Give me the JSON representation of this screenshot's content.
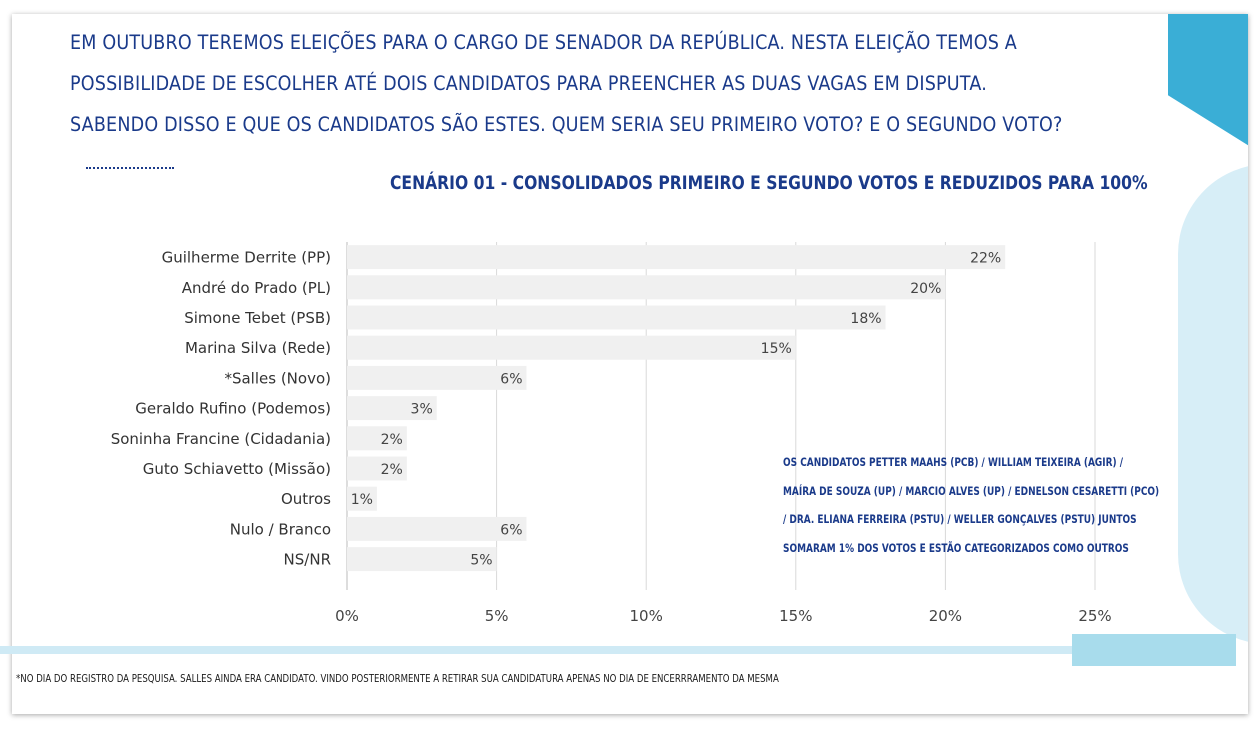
{
  "question": {
    "line1": "EM OUTUBRO TEREMOS ELEIÇÕES PARA O CARGO DE SENADOR DA REPÚBLICA. NESTA ELEIÇÃO TEMOS A",
    "line2": "POSSIBILIDADE DE ESCOLHER ATÉ DOIS CANDIDATOS PARA PREENCHER AS DUAS VAGAS EM DISPUTA.",
    "line3": "SABENDO DISSO E QUE OS CANDIDATOS SÃO ESTES. QUEM SERIA SEU PRIMEIRO VOTO? E O SEGUNDO VOTO?"
  },
  "note": {
    "line1": "OS CANDIDATOS PETTER MAAHS (PCB) / WILLIAM TEIXEIRA (AGIR) /",
    "line2": "MAÍRA DE SOUZA (UP) / MARCIO ALVES (UP) / EDNELSON CESARETTI (PCO)",
    "line3": "/ DRA. ELIANA FERREIRA (PSTU) / WELLER GONÇALVES (PSTU) JUNTOS",
    "line4": "SOMARAM 1% DOS VOTOS E ESTÃO CATEGORIZADOS COMO OUTROS"
  },
  "footnote": "*NO DIA DO REGISTRO DA PESQUISA. SALLES AINDA ERA CANDIDATO. VINDO POSTERIORMENTE A RETIRAR SUA CANDIDATURA APENAS NO DIA DE ENCERRRAMENTO DA MESMA",
  "colors": {
    "bar": "#f0f0f0",
    "grid": "#d9d9d9",
    "title": "#1a3a8a",
    "accent": "#3aaed6"
  },
  "chart_data": {
    "type": "bar",
    "orientation": "horizontal",
    "title": "CENÁRIO 01 - CONSOLIDADOS PRIMEIRO E SEGUNDO VOTOS E REDUZIDOS PARA 100%",
    "categories": [
      "Guilherme Derrite (PP)",
      "André do Prado (PL)",
      "Simone Tebet (PSB)",
      "Marina Silva (Rede)",
      "*Salles (Novo)",
      "Geraldo Rufino (Podemos)",
      "Soninha Francine (Cidadania)",
      "Guto Schiavetto (Missão)",
      "Outros",
      "Nulo / Branco",
      "NS/NR"
    ],
    "values": [
      22,
      20,
      18,
      15,
      6,
      3,
      2,
      2,
      1,
      6,
      5
    ],
    "value_labels": [
      "22%",
      "20%",
      "18%",
      "15%",
      "6%",
      "3%",
      "2%",
      "2%",
      "1%",
      "6%",
      "5%"
    ],
    "xlim": [
      0,
      25
    ],
    "xticks": [
      0,
      5,
      10,
      15,
      20,
      25
    ],
    "xtick_labels": [
      "0%",
      "5%",
      "10%",
      "15%",
      "20%",
      "25%"
    ],
    "grid": true,
    "legend": "none"
  }
}
